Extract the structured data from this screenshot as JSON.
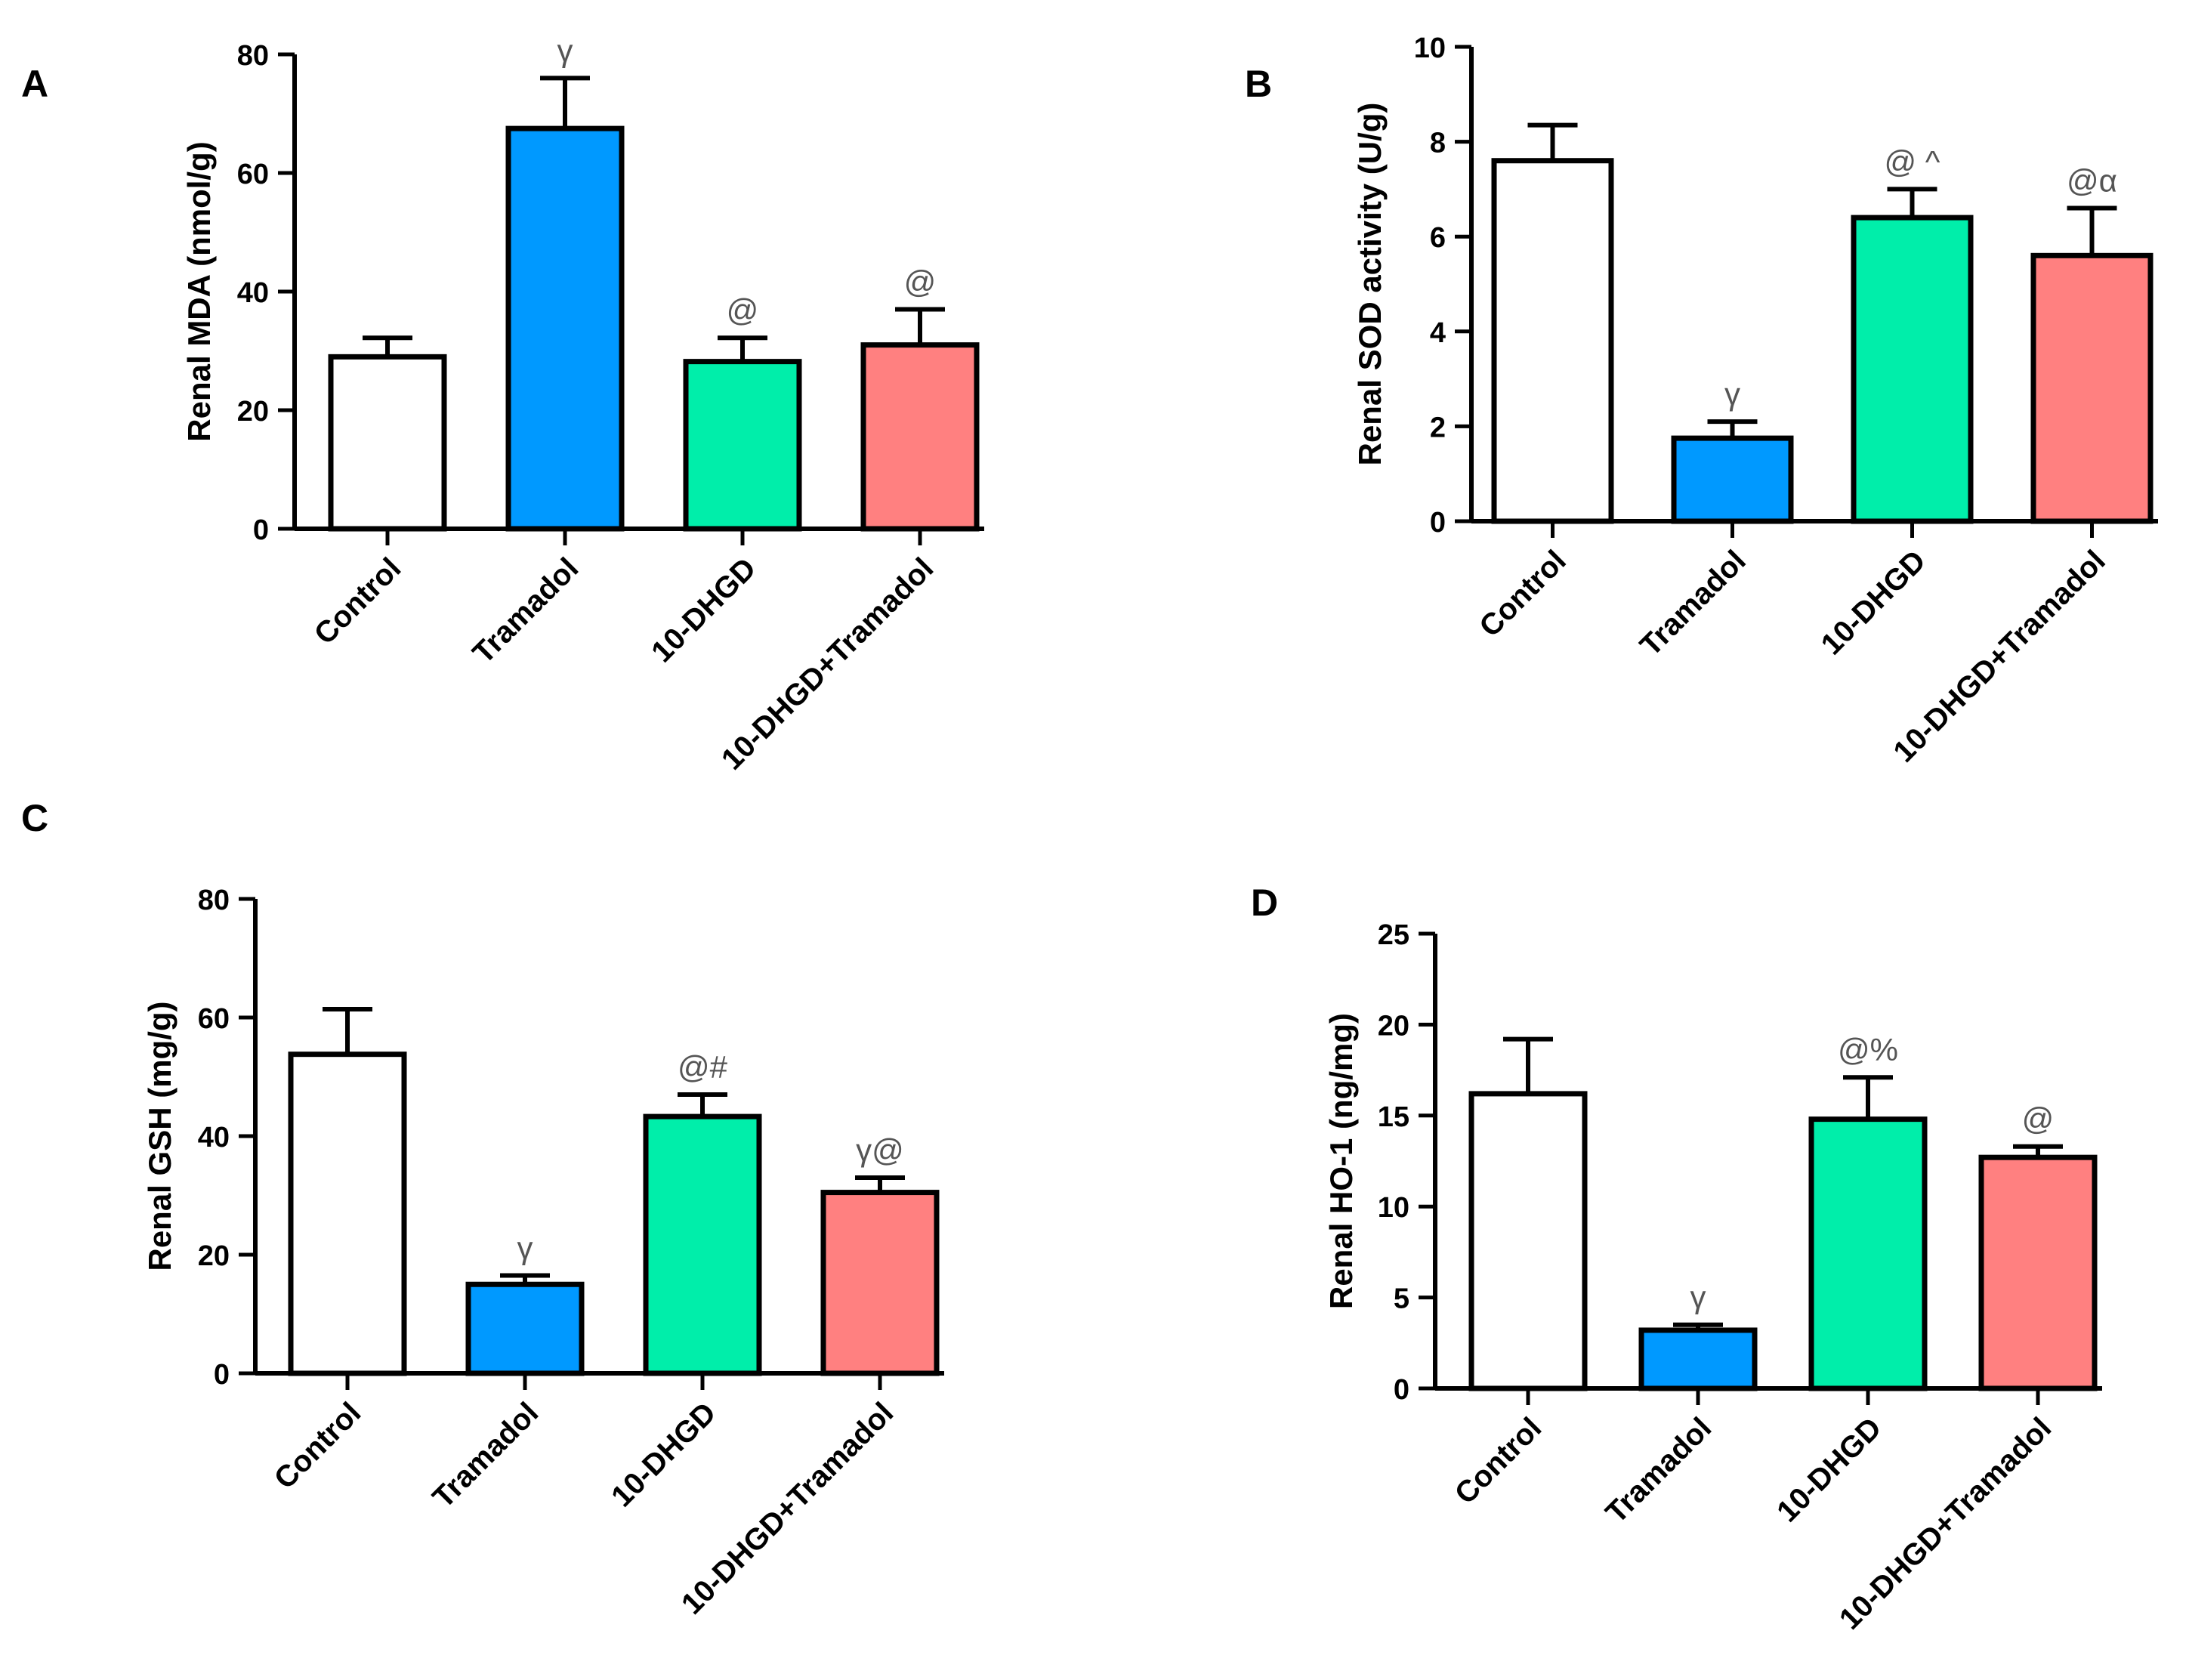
{
  "chart_data": [
    {
      "panel": "A",
      "type": "bar",
      "ylabel": "Renal MDA (nmol/g)",
      "ylim": [
        0,
        80
      ],
      "yticks": [
        0,
        20,
        40,
        60,
        80
      ],
      "categories": [
        "Control",
        "Tramadol",
        "10-DHGD",
        "10-DHGD+Tramadol"
      ],
      "values": [
        29,
        67.5,
        28.2,
        31
      ],
      "errors": [
        3.2,
        8.5,
        4,
        6
      ],
      "annotations": [
        "",
        "γ",
        "@",
        "@"
      ]
    },
    {
      "panel": "B",
      "type": "bar",
      "ylabel": "Renal SOD activity (U/g)",
      "ylim": [
        0,
        10
      ],
      "yticks": [
        0,
        2,
        4,
        6,
        8,
        10
      ],
      "categories": [
        "Control",
        "Tramadol",
        "10-DHGD",
        "10-DHGD+Tramadol"
      ],
      "values": [
        7.6,
        1.75,
        6.4,
        5.6
      ],
      "errors": [
        0.75,
        0.35,
        0.6,
        1.0
      ],
      "annotations": [
        "",
        "γ",
        "@ ^",
        "@α"
      ]
    },
    {
      "panel": "C",
      "type": "bar",
      "ylabel": "Renal GSH (mg/g)",
      "ylim": [
        0,
        80
      ],
      "yticks": [
        0,
        20,
        40,
        60,
        80
      ],
      "categories": [
        "Control",
        "Tramadol",
        "10-DHGD",
        "10-DHGD+Tramadol"
      ],
      "values": [
        53.8,
        15,
        43.3,
        30.5
      ],
      "errors": [
        7.6,
        1.5,
        3.7,
        2.5
      ],
      "annotations": [
        "",
        "γ",
        "@#",
        "γ@"
      ]
    },
    {
      "panel": "D",
      "type": "bar",
      "ylabel": "Renal HO-1 (ng/mg)",
      "ylim": [
        0,
        25
      ],
      "yticks": [
        0,
        5,
        10,
        15,
        20,
        25
      ],
      "categories": [
        "Control",
        "Tramadol",
        "10-DHGD",
        "10-DHGD+Tramadol"
      ],
      "values": [
        16.2,
        3.2,
        14.8,
        12.7
      ],
      "errors": [
        3.0,
        0.3,
        2.3,
        0.6
      ],
      "annotations": [
        "",
        "γ",
        "@%",
        "@"
      ]
    }
  ],
  "colors": {
    "bars": [
      "#ffffff",
      "#0099ff",
      "#00eeaa",
      "#ff8080"
    ],
    "stroke": "#000000",
    "annotation": "#555555"
  }
}
